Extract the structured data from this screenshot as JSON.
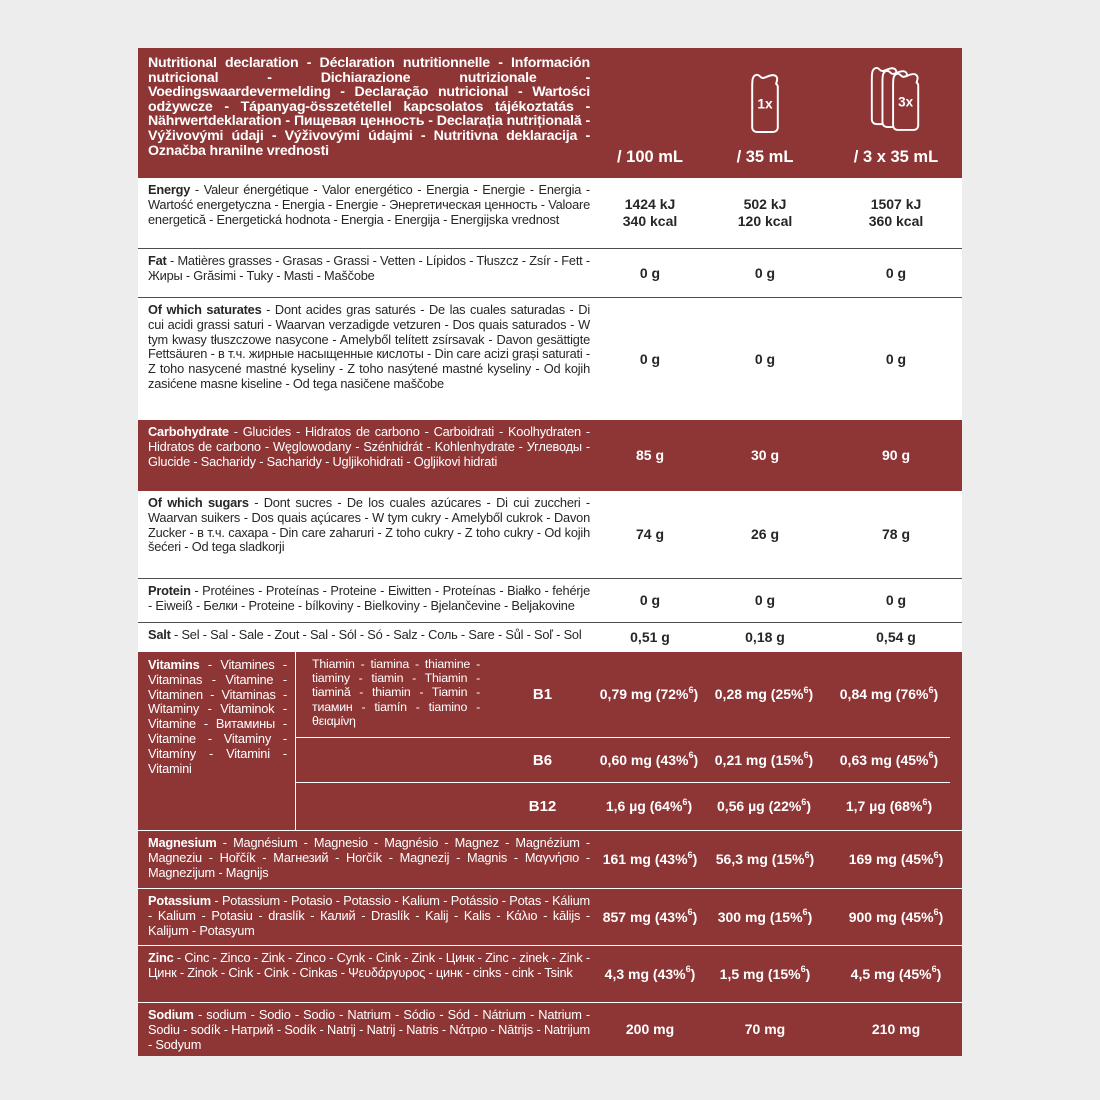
{
  "colors": {
    "accent": "#8e3535",
    "page_background": "#ededed"
  },
  "header": {
    "title": "Nutritional declaration - Déclaration nutritionnelle - Información nutricional - Dichiarazione nutrizionale - Voedingswaardevermelding - Declaração nutricional - Wartości odżywcze - Tápanyag-összetétellel kapcsolatos tájékoztatás - Nährwertdeklaration - Пищевая ценность - Declarația nutrițională - Výživovými údaji - Výživovými údajmi - Nutritivna deklaracija - Označba hranilne vrednosti",
    "columns": [
      {
        "unit": "/ 100 mL",
        "icon": null,
        "badge": null
      },
      {
        "unit": "/ 35 mL",
        "icon": "gel-sachet-single",
        "badge": "1x"
      },
      {
        "unit": "/ 3 x 35 mL",
        "icon": "gel-sachet-triple",
        "badge": "3x"
      }
    ]
  },
  "rows": [
    {
      "name": "energy",
      "term": "Energy",
      "rest": " - Valeur énergétique - Valor energético - Energia - Energie - Energia - Wartość energetyczna - Energia - Energie - Энергетическая ценность - Valoare energetică - Energetická hodnota - Energia - Energija - Energijska vrednost",
      "values": [
        "1424 kJ\n340 kcal",
        "502 kJ\n120 kcal",
        "1507 kJ\n360 kcal"
      ]
    },
    {
      "name": "fat",
      "term": "Fat",
      "rest": " - Matières grasses - Grasas - Grassi - Vetten - Lípidos - Tłuszcz - Zsír - Fett - Жиры - Grăsimi - Tuky - Masti - Maščobe",
      "values": [
        "0 g",
        "0 g",
        "0 g"
      ]
    },
    {
      "name": "saturates",
      "term": "Of which saturates",
      "rest": " - Dont acides gras saturés - De las cuales saturadas - Di cui acidi grassi saturi - Waarvan verzadigde vetzuren - Dos quais saturados - W tym kwasy tłuszczowe nasycone - Amelyből telített zsírsavak - Davon gesättigte Fettsäuren - в т.ч. жирные насыщенные кислоты - Din care acizi grași saturati - Z toho nasycené mastné kyseliny - Z toho nasýtené mastné kyseliny - Od kojih zasićene masne kiseline - Od tega nasičene maščobe",
      "values": [
        "0 g",
        "0 g",
        "0 g"
      ]
    },
    {
      "name": "carbohydrate",
      "term": "Carbohydrate",
      "rest": " - Glucides - Hidratos de carbono - Carboidrati - Koolhydraten - Hidratos de carbono - Węglowodany - Szénhidrát - Kohlenhydrate - Углеводы - Glucide - Sacharidy - Sacharidy - Ugljikohidrati - Ogljikovi hidrati",
      "values": [
        "85 g",
        "30 g",
        "90 g"
      ]
    },
    {
      "name": "sugars",
      "term": "Of which sugars",
      "rest": " - Dont sucres - De los cuales azúcares - Di cui zuccheri - Waarvan suikers - Dos quais açúcares - W tym cukry - Amelyből cukrok - Davon Zucker - в т.ч. сахара - Din care zaharuri - Z toho cukry - Z toho cukry - Od kojih šećeri - Od tega sladkorji",
      "values": [
        "74 g",
        "26 g",
        "78 g"
      ]
    },
    {
      "name": "protein",
      "term": "Protein",
      "rest": " - Protéines - Proteínas - Proteine - Eiwitten - Proteínas - Białko - fehérje - Eiweiß - Белки - Proteine - bílkoviny - Bielkoviny - Bjelančevine - Beljakovine",
      "values": [
        "0 g",
        "0 g",
        "0 g"
      ]
    },
    {
      "name": "salt",
      "term": "Salt",
      "rest": " - Sel - Sal - Sale - Zout - Sal - Sól - Só - Salz - Соль - Sare - Sůl - Soľ - Sol",
      "values": [
        "0,51 g",
        "0,18 g",
        "0,54 g"
      ]
    },
    {
      "name": "vitamins",
      "term": "Vitamins",
      "rest": " - Vitamines - Vitaminas - Vitamine - Vitaminen - Vitaminas - Witaminy - Vitaminok - Vitamine - Витамины - Vitamine - Vitaminy - Vitamíny - Vitamini - Vitamini",
      "sub_rows": [
        {
          "label": "B1",
          "desc": "Thiamin - tiamina - thiamine - tiaminy - tiamin - Thiamin - tiamină - thiamin - Tiamin - тиамин - tiamín - tiamino - θειαμίνη",
          "values": [
            "0,79 mg (72%6)",
            "0,28 mg (25%6)",
            "0,84 mg (76%6)"
          ]
        },
        {
          "label": "B6",
          "desc": "",
          "values": [
            "0,60 mg (43%6)",
            "0,21 mg (15%6)",
            "0,63 mg (45%6)"
          ]
        },
        {
          "label": "B12",
          "desc": "",
          "values": [
            "1,6 µg (64%6)",
            "0,56 µg (22%6)",
            "1,7 µg (68%6)"
          ]
        }
      ]
    },
    {
      "name": "magnesium",
      "term": "Magnesium",
      "rest": " - Magnésium - Magnesio - Magnésio - Magnez - Magnézium - Magneziu - Hořčík - Магнезий - Horčík - Magnezij - Magnis - Μαγνήσιο - Magnezijum - Magnijs",
      "values": [
        "161 mg (43%6)",
        "56,3 mg (15%6)",
        "169 mg (45%6)"
      ]
    },
    {
      "name": "potassium",
      "term": "Potassium",
      "rest": " - Potassium - Potasio - Potassio - Kalium - Potássio - Potas - Kálium - Kalium - Potasiu - draslík - Калий - Draslík - Kalij - Kalis - Κάλιο - kālijs - Kalijum - Potasyum",
      "values": [
        "857 mg (43%6)",
        "300 mg (15%6)",
        "900 mg (45%6)"
      ]
    },
    {
      "name": "zinc",
      "term": "Zinc",
      "rest": " - Cinc - Zinco - Zink - Zinco - Cynk - Cink - Zink - Цинк - Zinc - zinek - Zink - Цинк - Zinok - Cink - Cink - Cinkas - Ψευδάργυρος - цинк - cinks - cink - Tsink",
      "values": [
        "4,3 mg (43%6)",
        "1,5 mg (15%6)",
        "4,5 mg (45%6)"
      ]
    },
    {
      "name": "sodium",
      "term": "Sodium",
      "rest": " - sodium - Sodio - Sodio - Natrium - Sódio - Sód - Nátrium - Natrium - Sodiu - sodík - Натрий - Sodík - Natrij - Natrij - Natris - Νάτριο - Nātrijs - Natrijum - Sodyum",
      "values": [
        "200 mg",
        "70 mg",
        "210 mg"
      ]
    }
  ]
}
